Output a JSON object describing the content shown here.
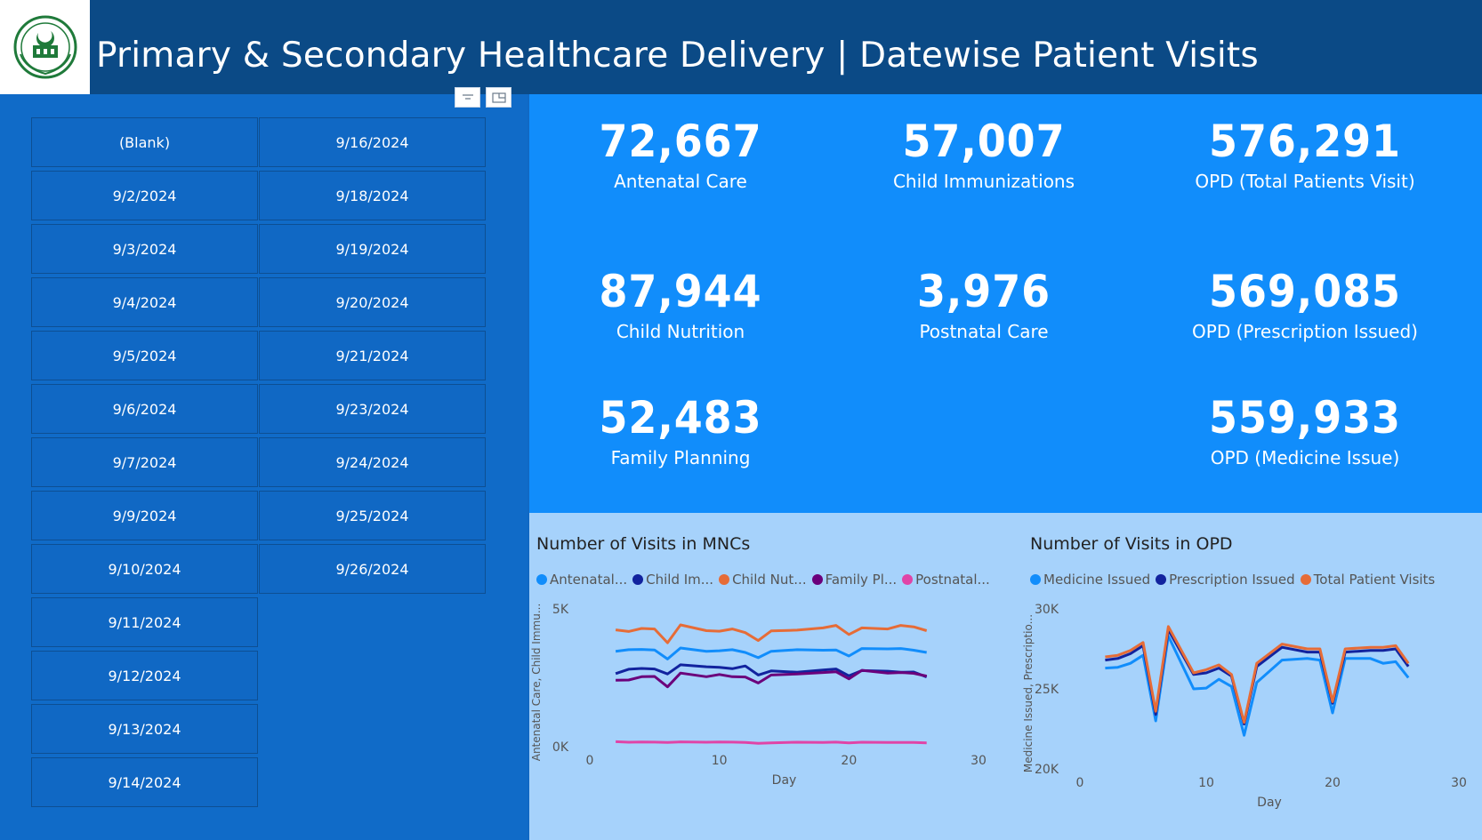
{
  "header": {
    "title": "Primary & Secondary Healthcare Delivery | Datewise Patient Visits",
    "logo_icon": "punjab-government-emblem-icon"
  },
  "slicer": {
    "dates_col1": [
      "(Blank)",
      "9/2/2024",
      "9/3/2024",
      "9/4/2024",
      "9/5/2024",
      "9/6/2024",
      "9/7/2024",
      "9/9/2024",
      "9/10/2024",
      "9/11/2024",
      "9/12/2024",
      "9/13/2024",
      "9/14/2024"
    ],
    "dates_col2": [
      "9/16/2024",
      "9/18/2024",
      "9/19/2024",
      "9/20/2024",
      "9/21/2024",
      "9/23/2024",
      "9/24/2024",
      "9/25/2024",
      "9/26/2024"
    ],
    "controls": [
      "filter-icon",
      "focus-mode-icon"
    ]
  },
  "kpis": {
    "antenatal": {
      "value": "72,667",
      "label": "Antenatal Care"
    },
    "immunizations": {
      "value": "57,007",
      "label": "Child Immunizations"
    },
    "opd_total": {
      "value": "576,291",
      "label": "OPD (Total Patients Visit)"
    },
    "nutrition": {
      "value": "87,944",
      "label": "Child Nutrition"
    },
    "postnatal": {
      "value": "3,976",
      "label": "Postnatal Care"
    },
    "opd_prescription": {
      "value": "569,085",
      "label": "OPD (Prescription Issued)"
    },
    "family_planning": {
      "value": "52,483",
      "label": "Family Planning"
    },
    "opd_medicine": {
      "value": "559,933",
      "label": "OPD (Medicine Issue)"
    }
  },
  "chart_data": [
    {
      "type": "line",
      "title": "Number of Visits in MNCs",
      "xlabel": "Day",
      "ylabel": "Antenatal Care, Child Immu...",
      "xlim": [
        0,
        30
      ],
      "ylim": [
        0,
        5000
      ],
      "x_ticks": [
        "0",
        "10",
        "20",
        "30"
      ],
      "y_ticks": [
        "0K",
        "5K"
      ],
      "x": [
        2,
        3,
        4,
        5,
        6,
        7,
        9,
        10,
        11,
        12,
        13,
        14,
        16,
        18,
        19,
        20,
        21,
        23,
        24,
        25,
        26
      ],
      "series": [
        {
          "name": "Antenatal...",
          "color": "#118dfb",
          "values": [
            3460,
            3520,
            3530,
            3510,
            3180,
            3580,
            3460,
            3480,
            3520,
            3420,
            3230,
            3460,
            3520,
            3500,
            3510,
            3290,
            3560,
            3550,
            3560,
            3500,
            3420
          ]
        },
        {
          "name": "Child Im...",
          "color": "#12239e",
          "values": [
            2650,
            2810,
            2840,
            2820,
            2640,
            2970,
            2900,
            2880,
            2830,
            2930,
            2600,
            2750,
            2700,
            2780,
            2820,
            2570,
            2760,
            2740,
            2700,
            2710,
            2530
          ]
        },
        {
          "name": "Child Nut...",
          "color": "#e66c37",
          "values": [
            4240,
            4180,
            4290,
            4270,
            3770,
            4420,
            4210,
            4190,
            4270,
            4140,
            3850,
            4200,
            4230,
            4310,
            4400,
            4070,
            4310,
            4270,
            4400,
            4350,
            4210
          ]
        },
        {
          "name": "Family Pl...",
          "color": "#6b007b",
          "values": [
            2410,
            2420,
            2540,
            2550,
            2170,
            2670,
            2540,
            2620,
            2540,
            2530,
            2310,
            2600,
            2640,
            2690,
            2720,
            2460,
            2770,
            2670,
            2690,
            2660,
            2560
          ]
        },
        {
          "name": "Postnatal...",
          "color": "#e044a7",
          "values": [
            180,
            160,
            170,
            165,
            150,
            175,
            160,
            170,
            165,
            150,
            120,
            140,
            160,
            155,
            165,
            140,
            160,
            155,
            150,
            150,
            140
          ]
        }
      ]
    },
    {
      "type": "line",
      "title": "Number of Visits in OPD",
      "xlabel": "Day",
      "ylabel": "Medicine Issued, Prescriptio...",
      "xlim": [
        0,
        30
      ],
      "ylim": [
        20000,
        30000
      ],
      "x_ticks": [
        "0",
        "10",
        "20",
        "30"
      ],
      "y_ticks": [
        "20K",
        "25K",
        "30K"
      ],
      "x": [
        2,
        3,
        4,
        5,
        6,
        7,
        9,
        10,
        11,
        12,
        13,
        14,
        16,
        18,
        19,
        20,
        21,
        23,
        24,
        25,
        26
      ],
      "series": [
        {
          "name": "Medicine Issued",
          "color": "#118dfb",
          "values": [
            26300,
            26350,
            26600,
            27100,
            23000,
            28300,
            25000,
            25050,
            25600,
            25150,
            22100,
            25400,
            26800,
            26900,
            26800,
            23500,
            26900,
            26900,
            26600,
            26700,
            25700
          ]
        },
        {
          "name": "Prescription Issued",
          "color": "#12239e",
          "values": [
            26800,
            26900,
            27200,
            27700,
            23400,
            28700,
            25900,
            26000,
            26300,
            25800,
            22800,
            26400,
            27600,
            27300,
            27300,
            24100,
            27300,
            27400,
            27400,
            27500,
            26400
          ]
        },
        {
          "name": "Total Patient Visits",
          "color": "#e66c37",
          "values": [
            27000,
            27100,
            27400,
            27900,
            23600,
            28900,
            26000,
            26200,
            26500,
            25900,
            22900,
            26600,
            27800,
            27500,
            27500,
            24200,
            27500,
            27600,
            27600,
            27700,
            26600
          ]
        }
      ]
    }
  ]
}
